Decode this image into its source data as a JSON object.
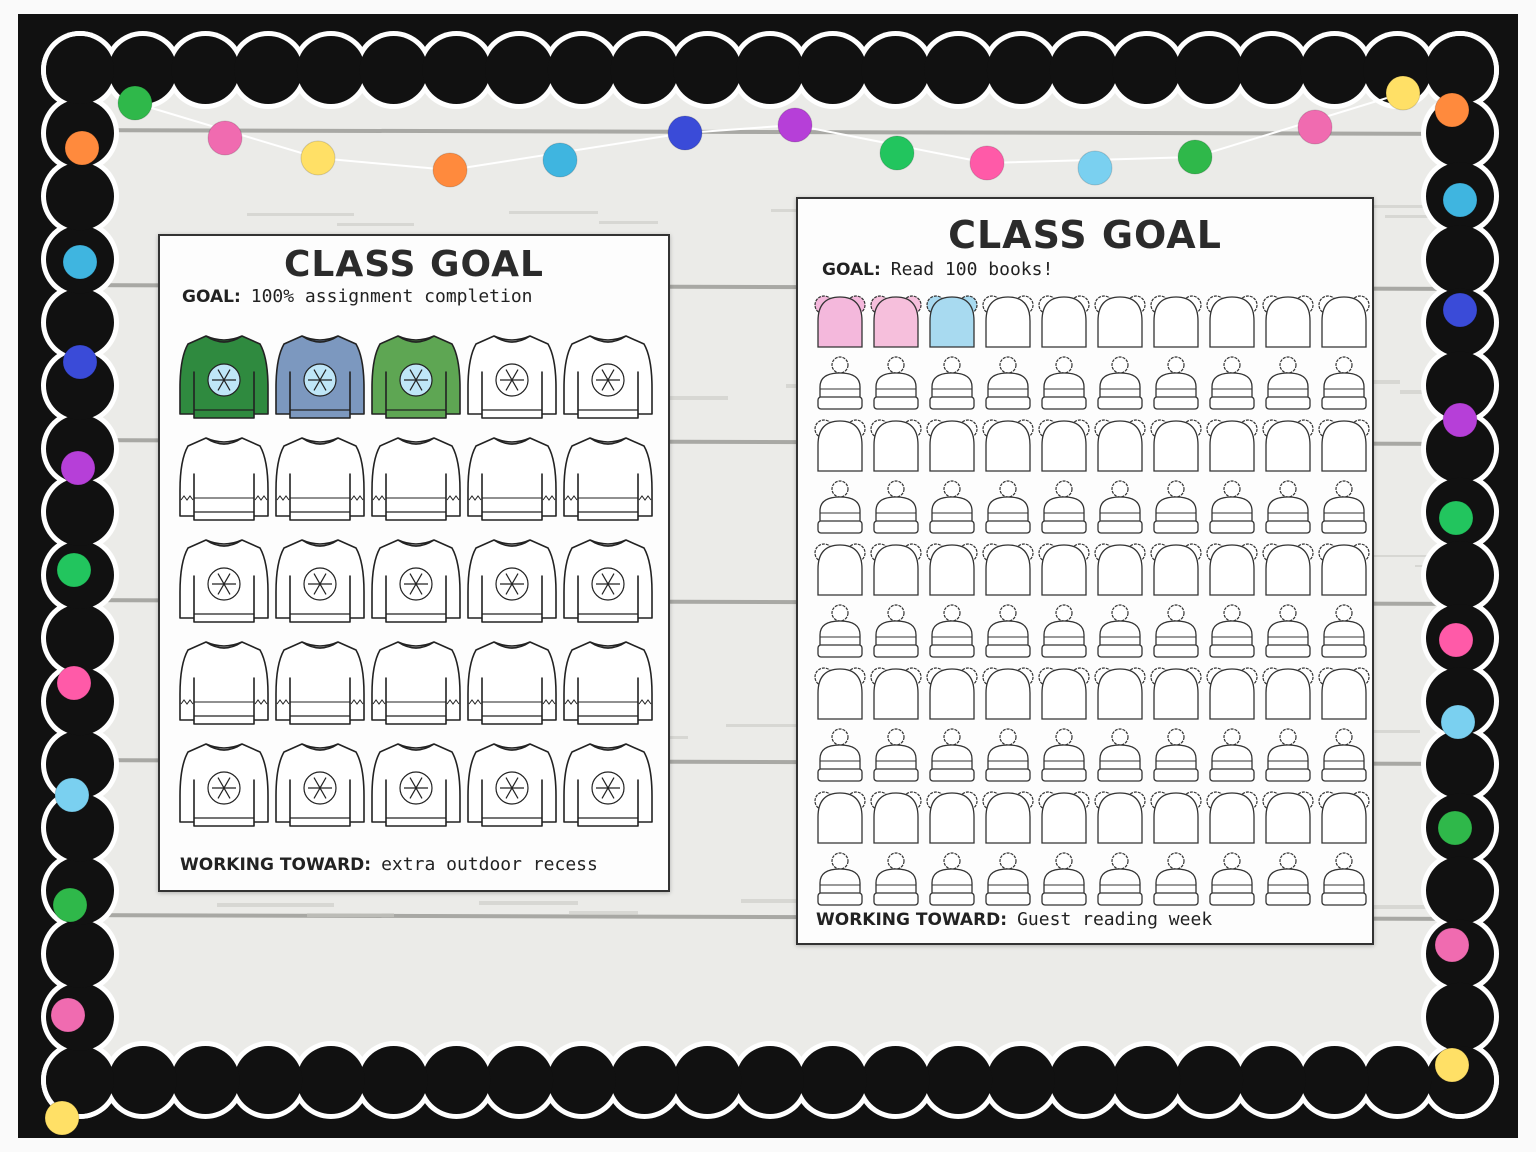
{
  "poster_left": {
    "title": "CLASS GOAL",
    "goal_label": "GOAL:",
    "goal_value": "100% assignment completion",
    "reward_label": "WORKING TOWARD:",
    "reward_value": "extra outdoor recess",
    "icon": "sweater-icon",
    "grid": {
      "rows": 5,
      "cols": 5
    },
    "colored_count": 3,
    "colored_fills": [
      "#2f8a3f",
      "#7c98bf",
      "#5ea653"
    ]
  },
  "poster_right": {
    "title": "CLASS GOAL",
    "goal_label": "GOAL:",
    "goal_value": "Read 100 books!",
    "reward_label": "WORKING TOWARD:",
    "reward_value": "Guest reading week",
    "icon": "winter-hat-icon",
    "grid": {
      "rows": 10,
      "cols": 10
    },
    "colored_count": 3,
    "colored_fills": [
      "#f4b8dc",
      "#f6bfdc",
      "#a8daf0"
    ]
  },
  "pompom_colors": [
    "#2fb84a",
    "#f06bb0",
    "#ffe066",
    "#ff8a3d",
    "#3fb5e0",
    "#3a4bd8",
    "#b63fd8",
    "#22c55e",
    "#ff5aa8",
    "#7ad0f0"
  ],
  "border_color": "#111111"
}
